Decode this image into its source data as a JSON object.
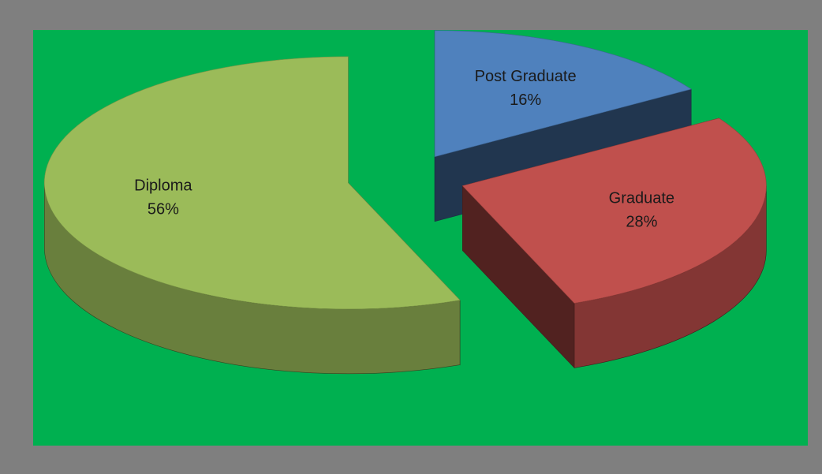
{
  "chart_data": {
    "type": "pie3d",
    "categories": [
      "Post Graduate",
      "Graduate",
      "Diploma"
    ],
    "values": [
      16,
      28,
      56
    ],
    "value_labels": [
      "16%",
      "28%",
      "56%"
    ],
    "colors": [
      "#4f81bd",
      "#c0504d",
      "#9bbb59"
    ]
  }
}
